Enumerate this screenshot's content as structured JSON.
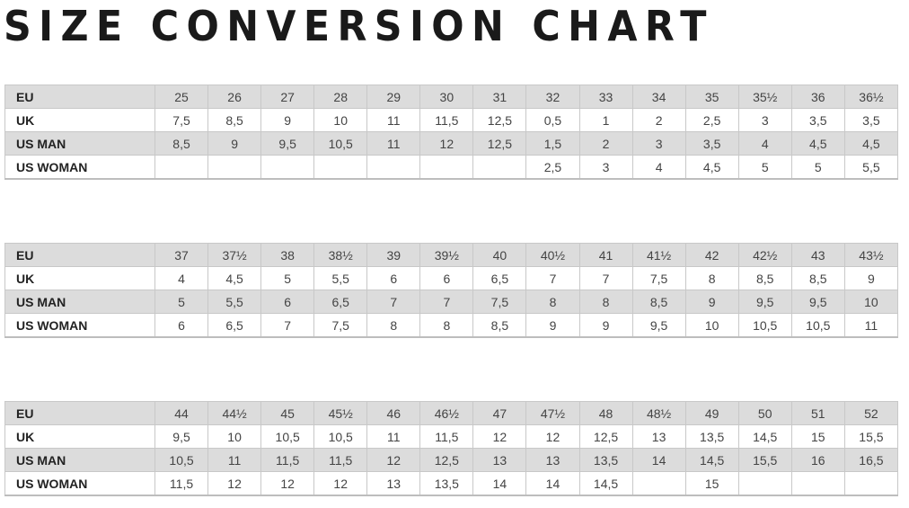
{
  "title": "SIZE CONVERSION CHART",
  "row_labels": [
    "EU",
    "UK",
    "US MAN",
    "US WOMAN"
  ],
  "tables": [
    {
      "EU": [
        "25",
        "26",
        "27",
        "28",
        "29",
        "30",
        "31",
        "32",
        "33",
        "34",
        "35",
        "35½",
        "36",
        "36½"
      ],
      "UK": [
        "7,5",
        "8,5",
        "9",
        "10",
        "11",
        "11,5",
        "12,5",
        "0,5",
        "1",
        "2",
        "2,5",
        "3",
        "3,5",
        "3,5"
      ],
      "US MAN": [
        "8,5",
        "9",
        "9,5",
        "10,5",
        "11",
        "12",
        "12,5",
        "1,5",
        "2",
        "3",
        "3,5",
        "4",
        "4,5",
        "4,5"
      ],
      "US WOMAN": [
        "",
        "",
        "",
        "",
        "",
        "",
        "",
        "2,5",
        "3",
        "4",
        "4,5",
        "5",
        "5",
        "5,5"
      ]
    },
    {
      "EU": [
        "37",
        "37½",
        "38",
        "38½",
        "39",
        "39½",
        "40",
        "40½",
        "41",
        "41½",
        "42",
        "42½",
        "43",
        "43½"
      ],
      "UK": [
        "4",
        "4,5",
        "5",
        "5,5",
        "6",
        "6",
        "6,5",
        "7",
        "7",
        "7,5",
        "8",
        "8,5",
        "8,5",
        "9"
      ],
      "US MAN": [
        "5",
        "5,5",
        "6",
        "6,5",
        "7",
        "7",
        "7,5",
        "8",
        "8",
        "8,5",
        "9",
        "9,5",
        "9,5",
        "10"
      ],
      "US WOMAN": [
        "6",
        "6,5",
        "7",
        "7,5",
        "8",
        "8",
        "8,5",
        "9",
        "9",
        "9,5",
        "10",
        "10,5",
        "10,5",
        "11"
      ]
    },
    {
      "EU": [
        "44",
        "44½",
        "45",
        "45½",
        "46",
        "46½",
        "47",
        "47½",
        "48",
        "48½",
        "49",
        "50",
        "51",
        "52"
      ],
      "UK": [
        "9,5",
        "10",
        "10,5",
        "10,5",
        "11",
        "11,5",
        "12",
        "12",
        "12,5",
        "13",
        "13,5",
        "14,5",
        "15",
        "15,5"
      ],
      "US MAN": [
        "10,5",
        "11",
        "11,5",
        "11,5",
        "12",
        "12,5",
        "13",
        "13",
        "13,5",
        "14",
        "14,5",
        "15,5",
        "16",
        "16,5"
      ],
      "US WOMAN": [
        "11,5",
        "12",
        "12",
        "12",
        "13",
        "13,5",
        "14",
        "14",
        "14,5",
        "",
        "15",
        "",
        "",
        ""
      ]
    }
  ],
  "colors": {
    "grey_row": "#dcdcdc",
    "border": "#c8c8c8",
    "title": "#1a1a1a"
  }
}
